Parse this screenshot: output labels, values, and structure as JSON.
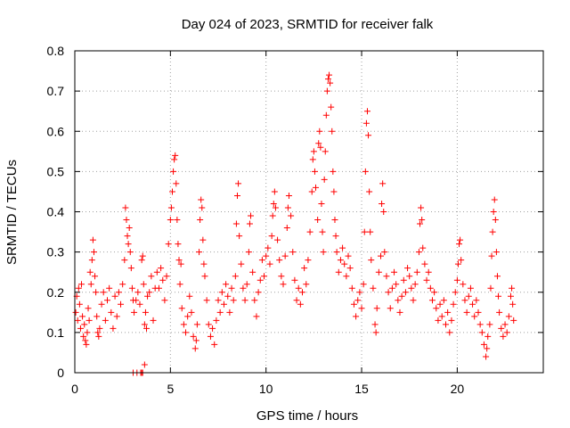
{
  "chart_data": {
    "type": "scatter",
    "title": "Day 024 of 2023, SRMTID for receiver falk",
    "xlabel": "GPS time / hours",
    "ylabel": "SRMTID / TECUs",
    "xlim": [
      0,
      24.5
    ],
    "ylim": [
      0,
      0.8
    ],
    "xticks": [
      0,
      5,
      10,
      15,
      20
    ],
    "yticks": [
      0,
      0.1,
      0.2,
      0.3,
      0.4,
      0.5,
      0.6,
      0.7,
      0.8
    ],
    "xtick_labels": [
      "0",
      "5",
      "10",
      "15",
      "20"
    ],
    "ytick_labels": [
      "0",
      "0.1",
      "0.2",
      "0.3",
      "0.4",
      "0.5",
      "0.6",
      "0.7",
      "0.8"
    ],
    "grid": true,
    "marker": "+",
    "series": [
      {
        "name": "SRMTID",
        "color": "#ff0000",
        "points": [
          [
            0.05,
            0.15
          ],
          [
            0.1,
            0.19
          ],
          [
            0.15,
            0.13
          ],
          [
            0.2,
            0.21
          ],
          [
            0.25,
            0.17
          ],
          [
            0.3,
            0.11
          ],
          [
            0.35,
            0.22
          ],
          [
            0.4,
            0.14
          ],
          [
            0.45,
            0.09
          ],
          [
            0.5,
            0.12
          ],
          [
            0.55,
            0.08
          ],
          [
            0.6,
            0.07
          ],
          [
            0.65,
            0.1
          ],
          [
            0.7,
            0.16
          ],
          [
            0.75,
            0.13
          ],
          [
            0.8,
            0.25
          ],
          [
            0.85,
            0.22
          ],
          [
            0.9,
            0.28
          ],
          [
            0.95,
            0.33
          ],
          [
            1.0,
            0.3
          ],
          [
            1.05,
            0.24
          ],
          [
            1.1,
            0.2
          ],
          [
            1.15,
            0.14
          ],
          [
            1.2,
            0.1
          ],
          [
            1.25,
            0.09
          ],
          [
            1.3,
            0.11
          ],
          [
            1.4,
            0.17
          ],
          [
            1.5,
            0.2
          ],
          [
            1.6,
            0.13
          ],
          [
            1.7,
            0.18
          ],
          [
            1.8,
            0.21
          ],
          [
            1.9,
            0.15
          ],
          [
            2.0,
            0.11
          ],
          [
            2.1,
            0.19
          ],
          [
            2.2,
            0.14
          ],
          [
            2.3,
            0.2
          ],
          [
            2.4,
            0.17
          ],
          [
            2.5,
            0.22
          ],
          [
            2.6,
            0.28
          ],
          [
            2.65,
            0.41
          ],
          [
            2.7,
            0.38
          ],
          [
            2.75,
            0.34
          ],
          [
            2.8,
            0.32
          ],
          [
            2.85,
            0.36
          ],
          [
            2.9,
            0.3
          ],
          [
            2.95,
            0.26
          ],
          [
            3.0,
            0.21
          ],
          [
            3.05,
            0.18
          ],
          [
            3.1,
            0.15
          ],
          [
            3.2,
            0.18
          ],
          [
            3.3,
            0.2
          ],
          [
            3.4,
            0.17
          ],
          [
            3.5,
            0.28
          ],
          [
            3.55,
            0.29
          ],
          [
            3.6,
            0.22
          ],
          [
            3.65,
            0.12
          ],
          [
            3.7,
            0.15
          ],
          [
            3.75,
            0.11
          ],
          [
            3.8,
            0.19
          ],
          [
            3.9,
            0.2
          ],
          [
            4.0,
            0.24
          ],
          [
            4.1,
            0.13
          ],
          [
            4.2,
            0.21
          ],
          [
            4.3,
            0.25
          ],
          [
            4.4,
            0.21
          ],
          [
            4.5,
            0.26
          ],
          [
            4.6,
            0.23
          ],
          [
            4.7,
            0.18
          ],
          [
            4.8,
            0.24
          ],
          [
            4.9,
            0.32
          ],
          [
            5.0,
            0.38
          ],
          [
            5.05,
            0.41
          ],
          [
            5.1,
            0.45
          ],
          [
            5.15,
            0.5
          ],
          [
            5.2,
            0.53
          ],
          [
            5.25,
            0.54
          ],
          [
            5.3,
            0.47
          ],
          [
            5.35,
            0.38
          ],
          [
            5.4,
            0.32
          ],
          [
            5.45,
            0.28
          ],
          [
            5.5,
            0.22
          ],
          [
            5.55,
            0.27
          ],
          [
            5.6,
            0.16
          ],
          [
            5.7,
            0.12
          ],
          [
            5.8,
            0.1
          ],
          [
            5.9,
            0.14
          ],
          [
            6.0,
            0.19
          ],
          [
            6.1,
            0.15
          ],
          [
            6.2,
            0.09
          ],
          [
            6.3,
            0.06
          ],
          [
            6.35,
            0.08
          ],
          [
            6.4,
            0.12
          ],
          [
            6.5,
            0.3
          ],
          [
            6.55,
            0.38
          ],
          [
            6.6,
            0.43
          ],
          [
            6.65,
            0.41
          ],
          [
            6.7,
            0.33
          ],
          [
            6.75,
            0.27
          ],
          [
            6.8,
            0.24
          ],
          [
            6.9,
            0.18
          ],
          [
            7.0,
            0.12
          ],
          [
            7.1,
            0.09
          ],
          [
            7.2,
            0.11
          ],
          [
            7.3,
            0.07
          ],
          [
            7.4,
            0.13
          ],
          [
            7.5,
            0.18
          ],
          [
            7.6,
            0.15
          ],
          [
            7.7,
            0.2
          ],
          [
            7.8,
            0.17
          ],
          [
            7.9,
            0.22
          ],
          [
            8.0,
            0.19
          ],
          [
            8.1,
            0.15
          ],
          [
            8.2,
            0.21
          ],
          [
            8.3,
            0.18
          ],
          [
            8.4,
            0.24
          ],
          [
            8.45,
            0.37
          ],
          [
            8.5,
            0.44
          ],
          [
            8.55,
            0.47
          ],
          [
            8.6,
            0.34
          ],
          [
            8.7,
            0.27
          ],
          [
            8.8,
            0.21
          ],
          [
            8.9,
            0.18
          ],
          [
            9.0,
            0.22
          ],
          [
            9.1,
            0.3
          ],
          [
            9.15,
            0.37
          ],
          [
            9.2,
            0.39
          ],
          [
            9.3,
            0.25
          ],
          [
            9.4,
            0.18
          ],
          [
            9.5,
            0.14
          ],
          [
            9.6,
            0.2
          ],
          [
            9.7,
            0.23
          ],
          [
            9.8,
            0.28
          ],
          [
            9.9,
            0.24
          ],
          [
            10.0,
            0.29
          ],
          [
            10.1,
            0.31
          ],
          [
            10.2,
            0.27
          ],
          [
            10.3,
            0.34
          ],
          [
            10.35,
            0.39
          ],
          [
            10.4,
            0.42
          ],
          [
            10.45,
            0.45
          ],
          [
            10.5,
            0.41
          ],
          [
            10.6,
            0.33
          ],
          [
            10.7,
            0.28
          ],
          [
            10.8,
            0.24
          ],
          [
            10.9,
            0.22
          ],
          [
            11.0,
            0.29
          ],
          [
            11.1,
            0.36
          ],
          [
            11.15,
            0.41
          ],
          [
            11.2,
            0.44
          ],
          [
            11.3,
            0.39
          ],
          [
            11.4,
            0.3
          ],
          [
            11.5,
            0.23
          ],
          [
            11.6,
            0.18
          ],
          [
            11.7,
            0.21
          ],
          [
            11.8,
            0.17
          ],
          [
            11.9,
            0.2
          ],
          [
            12.0,
            0.26
          ],
          [
            12.1,
            0.22
          ],
          [
            12.2,
            0.28
          ],
          [
            12.3,
            0.35
          ],
          [
            12.4,
            0.45
          ],
          [
            12.45,
            0.53
          ],
          [
            12.5,
            0.55
          ],
          [
            12.55,
            0.5
          ],
          [
            12.6,
            0.46
          ],
          [
            12.7,
            0.38
          ],
          [
            12.75,
            0.57
          ],
          [
            12.8,
            0.6
          ],
          [
            12.85,
            0.56
          ],
          [
            12.9,
            0.42
          ],
          [
            12.95,
            0.35
          ],
          [
            13.0,
            0.3
          ],
          [
            13.05,
            0.48
          ],
          [
            13.1,
            0.55
          ],
          [
            13.15,
            0.64
          ],
          [
            13.2,
            0.7
          ],
          [
            13.25,
            0.73
          ],
          [
            13.3,
            0.74
          ],
          [
            13.35,
            0.72
          ],
          [
            13.4,
            0.66
          ],
          [
            13.45,
            0.6
          ],
          [
            13.5,
            0.5
          ],
          [
            13.55,
            0.45
          ],
          [
            13.6,
            0.38
          ],
          [
            13.65,
            0.34
          ],
          [
            13.7,
            0.3
          ],
          [
            13.8,
            0.25
          ],
          [
            13.9,
            0.28
          ],
          [
            14.0,
            0.31
          ],
          [
            14.1,
            0.27
          ],
          [
            14.2,
            0.24
          ],
          [
            14.3,
            0.29
          ],
          [
            14.4,
            0.26
          ],
          [
            14.5,
            0.21
          ],
          [
            14.6,
            0.17
          ],
          [
            14.7,
            0.14
          ],
          [
            14.8,
            0.18
          ],
          [
            14.9,
            0.2
          ],
          [
            15.0,
            0.16
          ],
          [
            15.1,
            0.22
          ],
          [
            15.15,
            0.35
          ],
          [
            15.2,
            0.5
          ],
          [
            15.25,
            0.62
          ],
          [
            15.3,
            0.65
          ],
          [
            15.35,
            0.59
          ],
          [
            15.4,
            0.45
          ],
          [
            15.45,
            0.35
          ],
          [
            15.5,
            0.28
          ],
          [
            15.6,
            0.21
          ],
          [
            15.7,
            0.12
          ],
          [
            15.75,
            0.1
          ],
          [
            15.8,
            0.16
          ],
          [
            15.9,
            0.25
          ],
          [
            16.0,
            0.29
          ],
          [
            16.05,
            0.42
          ],
          [
            16.1,
            0.47
          ],
          [
            16.15,
            0.4
          ],
          [
            16.2,
            0.3
          ],
          [
            16.3,
            0.24
          ],
          [
            16.4,
            0.2
          ],
          [
            16.5,
            0.16
          ],
          [
            16.6,
            0.21
          ],
          [
            16.7,
            0.25
          ],
          [
            16.8,
            0.22
          ],
          [
            16.9,
            0.18
          ],
          [
            17.0,
            0.15
          ],
          [
            17.1,
            0.19
          ],
          [
            17.2,
            0.23
          ],
          [
            17.3,
            0.2
          ],
          [
            17.4,
            0.26
          ],
          [
            17.5,
            0.24
          ],
          [
            17.6,
            0.21
          ],
          [
            17.7,
            0.18
          ],
          [
            17.8,
            0.22
          ],
          [
            17.9,
            0.25
          ],
          [
            18.0,
            0.3
          ],
          [
            18.05,
            0.37
          ],
          [
            18.1,
            0.41
          ],
          [
            18.15,
            0.38
          ],
          [
            18.2,
            0.31
          ],
          [
            18.3,
            0.27
          ],
          [
            18.4,
            0.23
          ],
          [
            18.5,
            0.25
          ],
          [
            18.6,
            0.21
          ],
          [
            18.7,
            0.18
          ],
          [
            18.8,
            0.2
          ],
          [
            18.9,
            0.16
          ],
          [
            19.0,
            0.13
          ],
          [
            19.1,
            0.17
          ],
          [
            19.2,
            0.14
          ],
          [
            19.3,
            0.18
          ],
          [
            19.4,
            0.12
          ],
          [
            19.5,
            0.15
          ],
          [
            19.6,
            0.1
          ],
          [
            19.7,
            0.13
          ],
          [
            19.8,
            0.17
          ],
          [
            19.9,
            0.2
          ],
          [
            20.0,
            0.23
          ],
          [
            20.05,
            0.27
          ],
          [
            20.1,
            0.32
          ],
          [
            20.15,
            0.33
          ],
          [
            20.2,
            0.28
          ],
          [
            20.3,
            0.22
          ],
          [
            20.4,
            0.18
          ],
          [
            20.5,
            0.15
          ],
          [
            20.6,
            0.19
          ],
          [
            20.7,
            0.21
          ],
          [
            20.8,
            0.17
          ],
          [
            20.9,
            0.14
          ],
          [
            21.0,
            0.18
          ],
          [
            21.1,
            0.15
          ],
          [
            21.2,
            0.12
          ],
          [
            21.3,
            0.1
          ],
          [
            21.4,
            0.07
          ],
          [
            21.5,
            0.04
          ],
          [
            21.55,
            0.06
          ],
          [
            21.6,
            0.09
          ],
          [
            21.7,
            0.12
          ],
          [
            21.75,
            0.21
          ],
          [
            21.8,
            0.29
          ],
          [
            21.85,
            0.35
          ],
          [
            21.9,
            0.4
          ],
          [
            21.95,
            0.43
          ],
          [
            22.0,
            0.38
          ],
          [
            22.05,
            0.3
          ],
          [
            22.1,
            0.24
          ],
          [
            22.15,
            0.19
          ],
          [
            22.2,
            0.15
          ],
          [
            22.3,
            0.11
          ],
          [
            22.4,
            0.09
          ],
          [
            22.5,
            0.12
          ],
          [
            22.6,
            0.1
          ],
          [
            22.7,
            0.14
          ],
          [
            22.8,
            0.19
          ],
          [
            22.85,
            0.21
          ],
          [
            22.9,
            0.17
          ],
          [
            22.95,
            0.13
          ],
          [
            3.05,
            0.0
          ],
          [
            3.25,
            0.0
          ],
          [
            3.45,
            0.0
          ],
          [
            3.5,
            0.0
          ],
          [
            3.55,
            0.0
          ],
          [
            3.65,
            0.02
          ]
        ]
      }
    ]
  }
}
